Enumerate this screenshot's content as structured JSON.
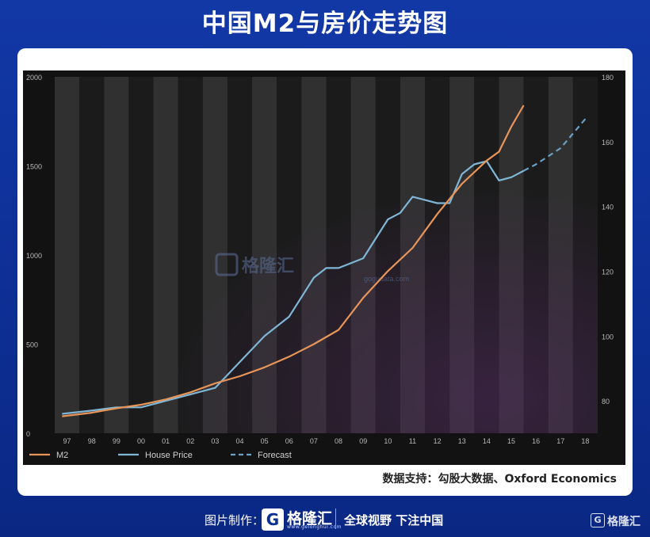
{
  "page": {
    "title": "中国M2与房价走势图",
    "source": "数据支持：勾股大数据、Oxford Economics"
  },
  "watermark": {
    "name": "格隆汇",
    "url": "gogudata.com"
  },
  "footer": {
    "made_by_label": "图片制作：",
    "brand_name": "格隆汇",
    "brand_url": "www.gelonghui.com",
    "slogan": "全球视野 下注中国",
    "corner_logo": "格隆汇"
  },
  "colors": {
    "m2": "#e8955a",
    "house_price": "#7fb6d6",
    "forecast": "#6aa0c4",
    "background": "#121212"
  },
  "chart_data": {
    "type": "line",
    "categories": [
      "97",
      "98",
      "99",
      "00",
      "01",
      "02",
      "03",
      "04",
      "05",
      "06",
      "07",
      "08",
      "09",
      "10",
      "11",
      "12",
      "13",
      "14",
      "15",
      "16",
      "17",
      "18"
    ],
    "x_range": [
      1997,
      2018
    ],
    "y_left_range": [
      0,
      2000
    ],
    "y_left_ticks": [
      "0",
      "500",
      "1000",
      "1500",
      "2000"
    ],
    "y_right_range": [
      70,
      180
    ],
    "y_right_ticks": [
      "80",
      "100",
      "120",
      "140",
      "160",
      "180"
    ],
    "grid": "alternating vertical year bands",
    "legend_position": "bottom-left",
    "series": [
      {
        "name": "M2",
        "axis": "left",
        "x": [
          1996.8,
          1998,
          1999,
          2000,
          2001,
          2002,
          2003,
          2004,
          2005,
          2006,
          2007,
          2008,
          2009,
          2010,
          2011,
          2012,
          2013,
          2014,
          2014.5,
          2015,
          2015.5
        ],
        "values": [
          95,
          115,
          140,
          160,
          190,
          230,
          280,
          320,
          370,
          430,
          500,
          580,
          760,
          910,
          1040,
          1230,
          1400,
          1530,
          1580,
          1720,
          1840
        ]
      },
      {
        "name": "House Price",
        "axis": "right",
        "x": [
          1996.8,
          1998,
          1999,
          2000,
          2001,
          2002,
          2003,
          2004,
          2004.5,
          2005,
          2006,
          2007,
          2007.5,
          2008,
          2009,
          2010,
          2010.5,
          2011,
          2012,
          2012.5,
          2013,
          2013.5,
          2014,
          2014.5,
          2015,
          2015.5
        ],
        "values": [
          76,
          77,
          78,
          78,
          80,
          82,
          84,
          92,
          96,
          100,
          106,
          118,
          121,
          121,
          124,
          136,
          138,
          143,
          141,
          141,
          150,
          153,
          154,
          148,
          149,
          151
        ]
      },
      {
        "name": "Forecast",
        "axis": "right",
        "x": [
          2015.5,
          2016,
          2017,
          2018
        ],
        "values": [
          151,
          153,
          158,
          167
        ]
      }
    ]
  }
}
